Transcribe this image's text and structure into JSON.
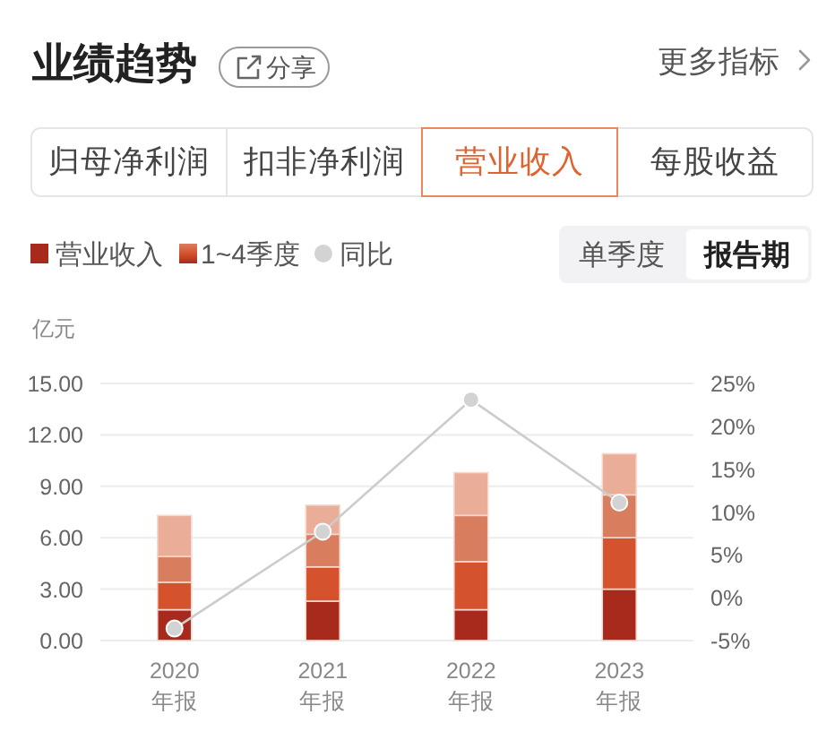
{
  "chart_data": {
    "type": "bar",
    "title": "业绩趋势",
    "ylabel": "亿元",
    "categories": [
      "2020\n年报",
      "2021\n年报",
      "2022\n年报",
      "2023\n年报"
    ],
    "stacked": true,
    "series": [
      {
        "color": "#a82a1c",
        "values": [
          1.8,
          2.3,
          1.8,
          3.0
        ]
      },
      {
        "color": "#d4532d",
        "values": [
          1.6,
          2.0,
          2.8,
          3.0
        ]
      },
      {
        "color": "#d97d5f",
        "values": [
          1.5,
          1.9,
          2.7,
          2.5
        ]
      },
      {
        "color": "#eaae98",
        "values": [
          2.4,
          1.7,
          2.5,
          2.4
        ]
      },
      {
        "name": "同比",
        "type": "line",
        "axis": "y2",
        "color": "#cccccc",
        "values": [
          -3.6,
          7.7,
          23.1,
          11.1
        ]
      }
    ],
    "ylim": [
      0,
      15
    ],
    "yticks": [
      {
        "value": 0,
        "label": "0.00"
      },
      {
        "value": 3,
        "label": "3.00"
      },
      {
        "value": 6,
        "label": "6.00"
      },
      {
        "value": 9,
        "label": "9.00"
      },
      {
        "value": 12,
        "label": "12.00"
      },
      {
        "value": 15,
        "label": "15.00"
      }
    ],
    "y2lim": [
      -5,
      25
    ],
    "y2ticks": [
      {
        "value": -5,
        "label": "-5%"
      },
      {
        "value": 0,
        "label": "0%"
      },
      {
        "value": 5,
        "label": "5%"
      },
      {
        "value": 10,
        "label": "10%"
      },
      {
        "value": 15,
        "label": "15%"
      },
      {
        "value": 20,
        "label": "20%"
      },
      {
        "value": 25,
        "label": "25%"
      }
    ],
    "grid": "y",
    "legend": "top left",
    "marker": "circle",
    "annotations": [
      "分享",
      "更多指标",
      "归母净利润",
      "扣非净利润",
      "营业收入",
      "每股收益",
      "营业收入",
      "1~4季度",
      "单季度",
      "报告期"
    ]
  }
}
